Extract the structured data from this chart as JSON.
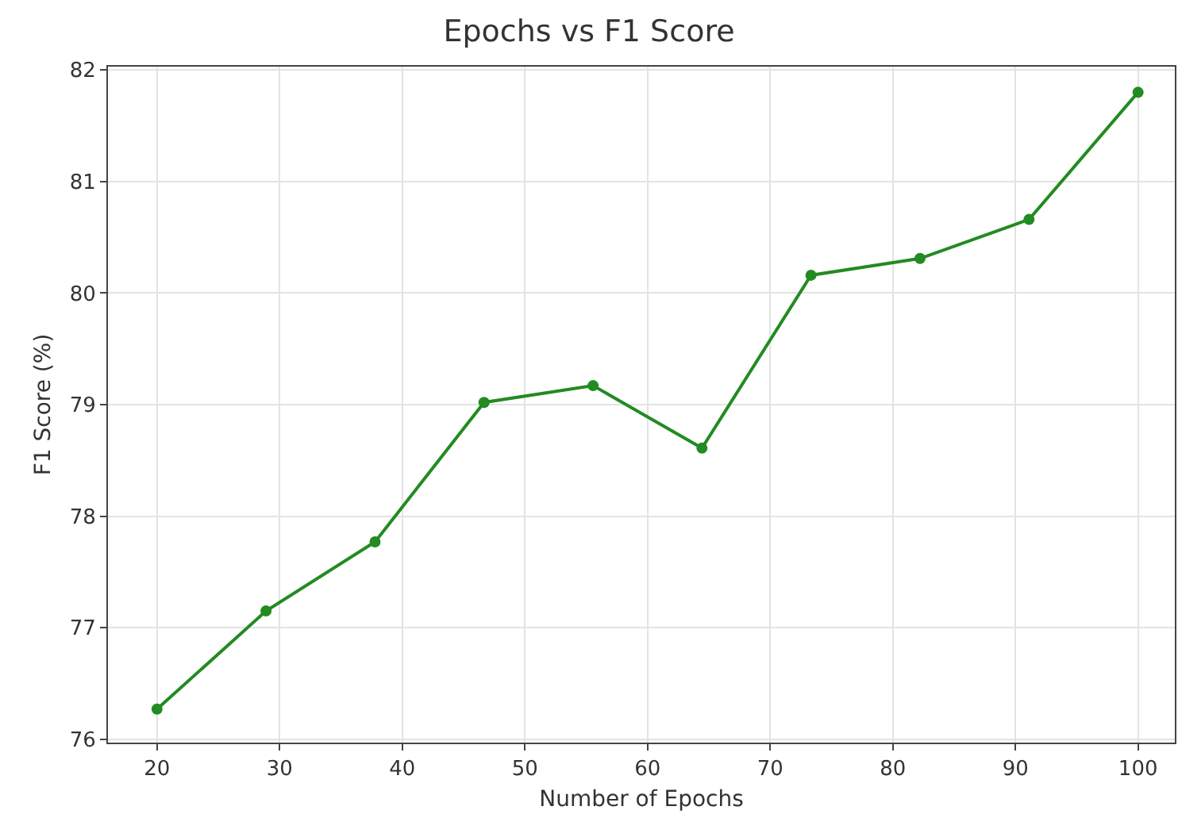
{
  "chart_data": {
    "type": "line",
    "title": "Epochs vs F1 Score",
    "xlabel": "Number of Epochs",
    "ylabel": "F1 Score (%)",
    "x": [
      20,
      28.89,
      37.78,
      46.67,
      55.56,
      64.44,
      73.33,
      82.22,
      91.11,
      100
    ],
    "series": [
      {
        "color": "#228b22",
        "values": [
          76.27,
          77.15,
          77.77,
          79.02,
          79.17,
          78.61,
          80.16,
          80.31,
          80.66,
          81.8
        ]
      }
    ],
    "xlim": [
      16,
      103
    ],
    "xticks": [
      20,
      30,
      40,
      50,
      60,
      70,
      80,
      90,
      100
    ],
    "ylim": [
      75.97,
      82.03
    ],
    "yticks": [
      76,
      77,
      78,
      79,
      80,
      81,
      82
    ],
    "grid": true,
    "marker": "circle",
    "line_style": "solid"
  }
}
